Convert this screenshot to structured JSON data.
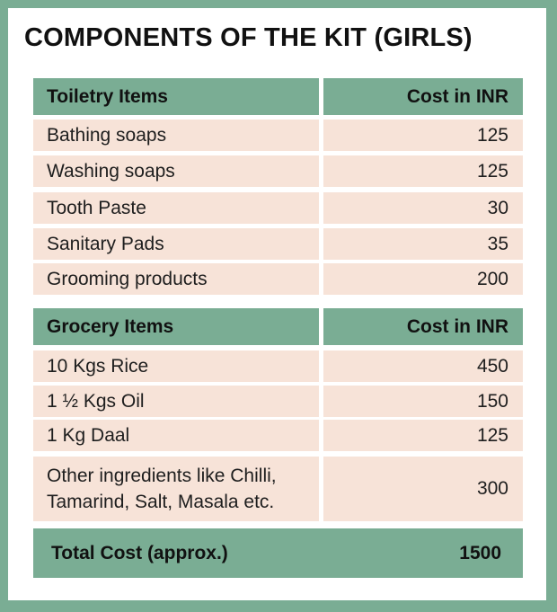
{
  "title": "COMPONENTS OF THE KIT (GIRLS)",
  "toiletry": {
    "header": {
      "item": "Toiletry Items",
      "cost": "Cost in INR"
    },
    "rows": [
      {
        "item": "Bathing soaps",
        "cost": "125"
      },
      {
        "item": "Washing soaps",
        "cost": "125"
      },
      {
        "item": "Tooth Paste",
        "cost": "30"
      },
      {
        "item": "Sanitary Pads",
        "cost": "35"
      },
      {
        "item": "Grooming products",
        "cost": "200"
      }
    ]
  },
  "grocery": {
    "header": {
      "item": "Grocery Items",
      "cost": "Cost in INR"
    },
    "rows": [
      {
        "item": "10 Kgs Rice",
        "cost": "450"
      },
      {
        "item": "1 ½ Kgs Oil",
        "cost": "150"
      },
      {
        "item": "1 Kg Daal",
        "cost": "125"
      },
      {
        "item_line1": "Other ingredients like Chilli,",
        "item_line2": "Tamarind, Salt, Masala etc.",
        "cost": "300"
      }
    ]
  },
  "total": {
    "label": "Total Cost (approx.)",
    "value": "1500"
  },
  "colors": {
    "frame": "#7aad94",
    "header": "#7aad94",
    "row": "#f7e3d8",
    "background": "#ffffff"
  }
}
